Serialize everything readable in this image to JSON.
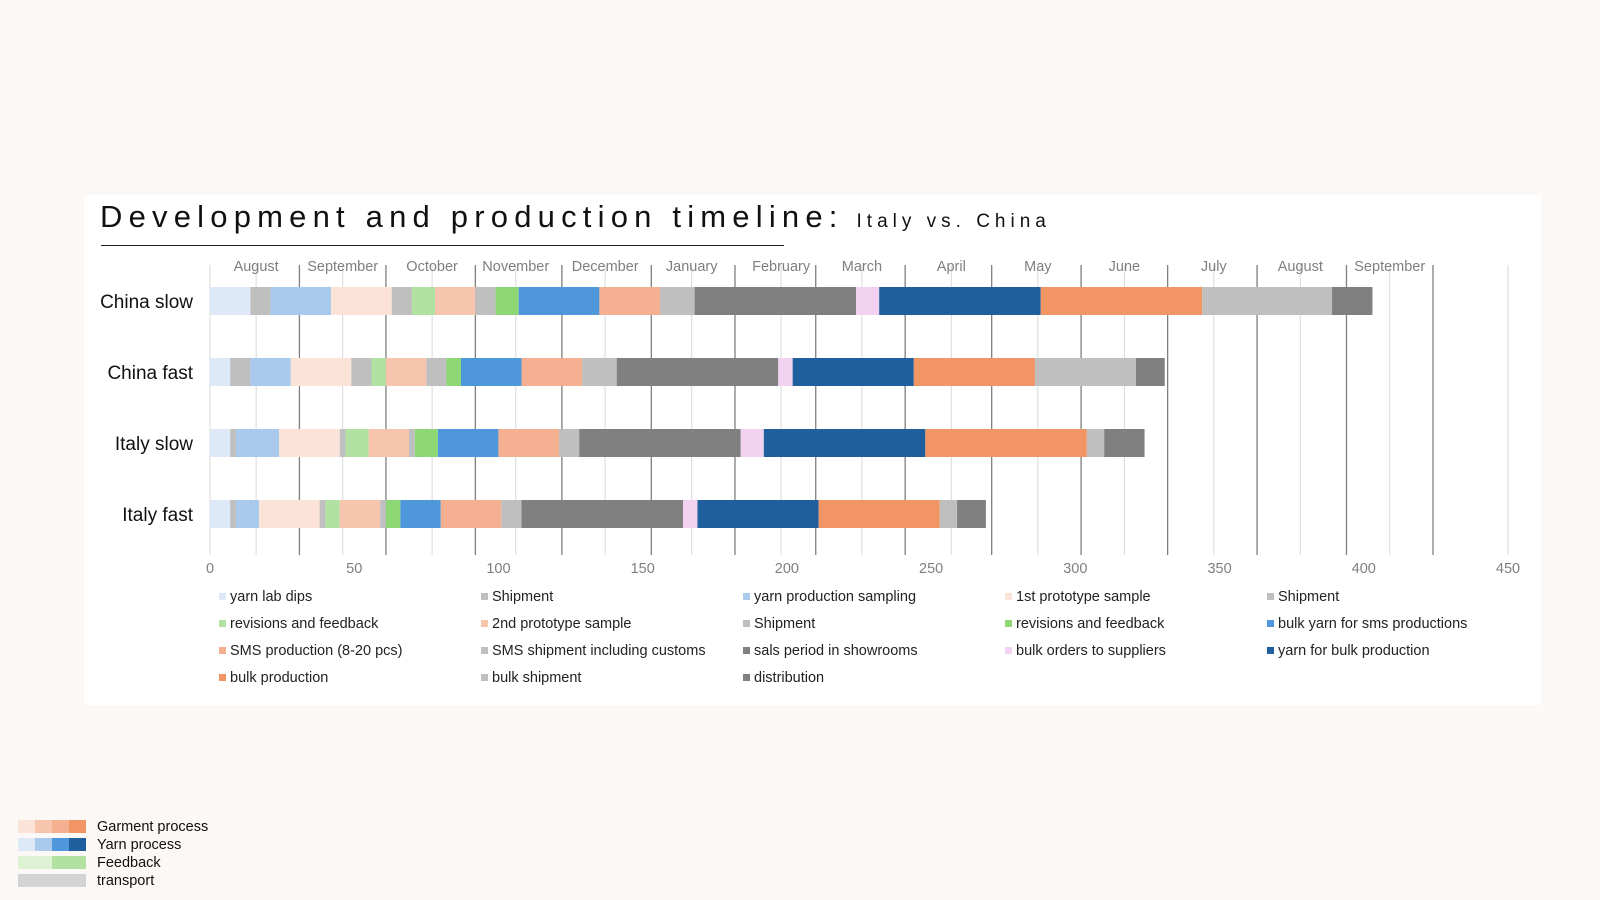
{
  "title": {
    "main": "Development and production timeline:",
    "sub": "Italy vs. China"
  },
  "chart_data": {
    "type": "bar",
    "orientation": "horizontal",
    "stacked": true,
    "categories": [
      "China slow",
      "China fast",
      "Italy slow",
      "Italy fast"
    ],
    "xlim": [
      0,
      450
    ],
    "xticks": [
      0,
      50,
      100,
      150,
      200,
      250,
      300,
      350,
      400,
      450
    ],
    "months": [
      {
        "label": "August",
        "x": 16
      },
      {
        "label": "September",
        "x": 46
      },
      {
        "label": "October",
        "x": 77
      },
      {
        "label": "November",
        "x": 106
      },
      {
        "label": "December",
        "x": 137
      },
      {
        "label": "January",
        "x": 167
      },
      {
        "label": "February",
        "x": 198
      },
      {
        "label": "March",
        "x": 226
      },
      {
        "label": "April",
        "x": 257
      },
      {
        "label": "May",
        "x": 287
      },
      {
        "label": "June",
        "x": 317
      },
      {
        "label": "July",
        "x": 348
      },
      {
        "label": "August",
        "x": 378
      },
      {
        "label": "September",
        "x": 409
      }
    ],
    "month_lines_light": [
      16,
      46,
      77,
      106,
      137,
      167,
      198,
      226,
      257,
      287,
      317,
      348,
      378,
      409,
      450
    ],
    "month_lines_dark": [
      31,
      61,
      92,
      122,
      153,
      182,
      210,
      241,
      271,
      302,
      332,
      363,
      394,
      424
    ],
    "grid": true,
    "legend_position": "bottom",
    "series": [
      {
        "name": "yarn lab dips",
        "color": "#dde9f7",
        "values": [
          14,
          7,
          7,
          7
        ]
      },
      {
        "name": "Shipment",
        "color": "#bfbfbf",
        "values": [
          7,
          7,
          2,
          2
        ]
      },
      {
        "name": "yarn production sampling",
        "color": "#a9c9ed",
        "values": [
          21,
          14,
          15,
          8
        ]
      },
      {
        "name": "1st prototype sample",
        "color": "#fbe3d8",
        "values": [
          21,
          21,
          21,
          21
        ]
      },
      {
        "name": "Shipment",
        "color": "#bfbfbf",
        "values": [
          7,
          7,
          2,
          2
        ]
      },
      {
        "name": "revisions and feedback",
        "color": "#b2e2a2",
        "values": [
          8,
          5,
          8,
          5
        ]
      },
      {
        "name": "2nd prototype sample",
        "color": "#f7c4ae",
        "values": [
          14,
          14,
          14,
          14
        ]
      },
      {
        "name": "Shipment",
        "color": "#bfbfbf",
        "values": [
          7,
          7,
          2,
          2
        ]
      },
      {
        "name": "revisions and feedback",
        "color": "#8dd874",
        "values": [
          8,
          5,
          8,
          5
        ]
      },
      {
        "name": "bulk yarn for sms productions",
        "color": "#4f97db",
        "values": [
          28,
          21,
          21,
          14
        ]
      },
      {
        "name": "SMS production (8-20 pcs)",
        "color": "#f4b090",
        "values": [
          21,
          21,
          21,
          21
        ]
      },
      {
        "name": "SMS shipment including customs",
        "color": "#bfbfbf",
        "values": [
          12,
          12,
          7,
          7
        ]
      },
      {
        "name": "sals period in showrooms",
        "color": "#808080",
        "values": [
          56,
          56,
          56,
          56
        ]
      },
      {
        "name": "bulk orders to suppliers",
        "color": "#f2d2f0",
        "values": [
          8,
          5,
          8,
          5
        ]
      },
      {
        "name": "yarn for bulk production",
        "color": "#1f5f9e",
        "values": [
          56,
          42,
          56,
          42
        ]
      },
      {
        "name": "bulk production",
        "color": "#f29564",
        "values": [
          56,
          42,
          56,
          42
        ]
      },
      {
        "name": "bulk shipment",
        "color": "#bfbfbf",
        "values": [
          45,
          35,
          6,
          6
        ]
      },
      {
        "name": "distribution",
        "color": "#808080",
        "values": [
          14,
          10,
          14,
          10
        ]
      }
    ]
  },
  "key": [
    {
      "label": "Garment process",
      "colors": [
        "#fbe3d8",
        "#f7c4ae",
        "#f4b090",
        "#f29564"
      ]
    },
    {
      "label": "Yarn process",
      "colors": [
        "#dde9f7",
        "#a9c9ed",
        "#4f97db",
        "#1f5f9e"
      ]
    },
    {
      "label": "Feedback",
      "colors": [
        "#dcf2d3",
        "#b2e2a2"
      ]
    },
    {
      "label": "transport",
      "colors": [
        "#d4d4d4"
      ]
    }
  ]
}
